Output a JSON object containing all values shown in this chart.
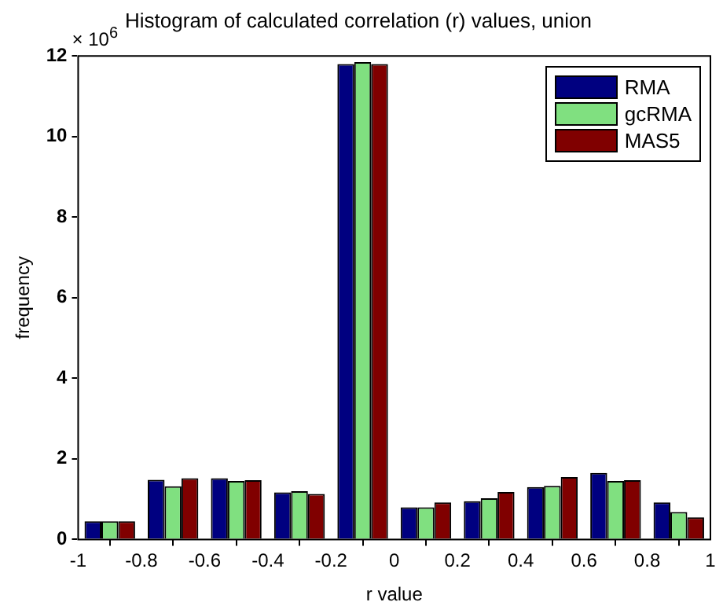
{
  "chart_data": {
    "type": "bar",
    "title": "Histogram of calculated correlation (r) values, union",
    "xlabel": "r value",
    "ylabel": "frequency",
    "x": [
      -0.9,
      -0.7,
      -0.5,
      -0.3,
      -0.1,
      0.1,
      0.3,
      0.5,
      0.7,
      0.9
    ],
    "series": [
      {
        "name": "RMA",
        "color": "#000080",
        "values": [
          0.45,
          1.48,
          1.52,
          1.17,
          11.8,
          0.8,
          0.95,
          1.3,
          1.65,
          0.92
        ]
      },
      {
        "name": "gcRMA",
        "color": "#80e080",
        "values": [
          0.45,
          1.32,
          1.45,
          1.2,
          11.85,
          0.8,
          1.02,
          1.33,
          1.45,
          0.68
        ]
      },
      {
        "name": "MAS5",
        "color": "#800000",
        "values": [
          0.45,
          1.52,
          1.47,
          1.13,
          11.8,
          0.92,
          1.18,
          1.55,
          1.47,
          0.55
        ]
      }
    ],
    "xlim": [
      -1,
      1
    ],
    "xticks": [
      -1,
      -0.8,
      -0.6,
      -0.4,
      -0.2,
      0,
      0.2,
      0.4,
      0.6,
      0.8,
      1
    ],
    "ylim": [
      0,
      12
    ],
    "yticks": [
      0,
      2,
      4,
      6,
      8,
      10,
      12
    ],
    "annotations": [
      "× 10$^{6}$"
    ],
    "grid": false,
    "legend": "top right"
  }
}
